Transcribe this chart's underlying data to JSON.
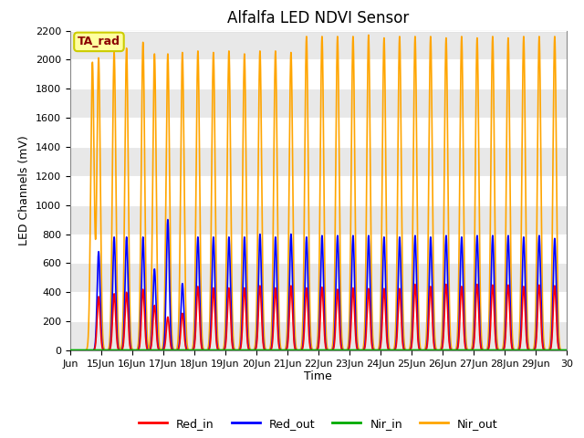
{
  "title": "Alfalfa LED NDVI Sensor",
  "ylabel": "LED Channels (mV)",
  "xlabel": "Time",
  "annotation": "TA_rad",
  "annotation_color": "#8B0000",
  "annotation_bg": "#FFFFA0",
  "annotation_border": "#CCCC00",
  "xlim_start": 14.0,
  "xlim_end": 30.0,
  "ylim_bottom": 0,
  "ylim_top": 2200,
  "yticks": [
    0,
    200,
    400,
    600,
    800,
    1000,
    1200,
    1400,
    1600,
    1800,
    2000,
    2200
  ],
  "xtick_positions": [
    14,
    15,
    16,
    17,
    18,
    19,
    20,
    21,
    22,
    23,
    24,
    25,
    26,
    27,
    28,
    29,
    30
  ],
  "xtick_labels": [
    "Jun",
    "15Jun",
    "16Jun",
    "17Jun",
    "18Jun",
    "19Jun",
    "20Jun",
    "21Jun",
    "22Jun",
    "23Jun",
    "24Jun",
    "25Jun",
    "26Jun",
    "27Jun",
    "28Jun",
    "29Jun",
    "30"
  ],
  "colors": {
    "Red_in": "#FF0000",
    "Red_out": "#0000FF",
    "Nir_in": "#00AA00",
    "Nir_out": "#FFA500"
  },
  "background_gray": "#E8E8E8",
  "background_white": "#FFFFFF",
  "legend_labels": [
    "Red_in",
    "Red_out",
    "Nir_in",
    "Nir_out"
  ],
  "legend_colors": [
    "#FF0000",
    "#0000FF",
    "#00AA00",
    "#FFA500"
  ],
  "nir_out_peak_times": [
    14.72,
    14.92,
    15.42,
    15.82,
    16.35,
    16.72,
    17.15,
    17.62,
    18.12,
    18.62,
    19.12,
    19.62,
    20.12,
    20.62,
    21.12,
    21.62,
    22.12,
    22.62,
    23.12,
    23.62,
    24.12,
    24.62,
    25.12,
    25.62,
    26.12,
    26.62,
    27.12,
    27.62,
    28.12,
    28.62,
    29.12,
    29.62
  ],
  "nir_out_heights": [
    1980,
    2010,
    2050,
    2080,
    2120,
    2040,
    2040,
    2050,
    2060,
    2050,
    2060,
    2040,
    2060,
    2060,
    2050,
    2160,
    2160,
    2160,
    2160,
    2170,
    2150,
    2160,
    2160,
    2160,
    2150,
    2160,
    2150,
    2160,
    2150,
    2160,
    2160,
    2160
  ],
  "red_out_peak_times": [
    14.92,
    15.42,
    15.82,
    16.35,
    16.72,
    17.15,
    17.62,
    18.12,
    18.62,
    19.12,
    19.62,
    20.12,
    20.62,
    21.12,
    21.62,
    22.12,
    22.62,
    23.12,
    23.62,
    24.12,
    24.62,
    25.12,
    25.62,
    26.12,
    26.62,
    27.12,
    27.62,
    28.12,
    28.62,
    29.12,
    29.62
  ],
  "red_out_heights": [
    680,
    780,
    780,
    780,
    560,
    900,
    460,
    780,
    780,
    780,
    780,
    800,
    780,
    800,
    780,
    790,
    790,
    790,
    790,
    780,
    780,
    790,
    780,
    790,
    780,
    790,
    790,
    790,
    780,
    790,
    770
  ],
  "red_in_peak_times": [
    14.92,
    15.42,
    15.82,
    16.35,
    16.72,
    17.15,
    17.62,
    18.12,
    18.62,
    19.12,
    19.62,
    20.12,
    20.62,
    21.12,
    21.62,
    22.12,
    22.62,
    23.12,
    23.62,
    24.12,
    24.62,
    25.12,
    25.62,
    26.12,
    26.62,
    27.12,
    27.62,
    28.12,
    28.62,
    29.12,
    29.62
  ],
  "red_in_heights": [
    370,
    390,
    400,
    420,
    310,
    230,
    255,
    440,
    430,
    430,
    430,
    445,
    430,
    445,
    430,
    435,
    420,
    430,
    425,
    425,
    425,
    455,
    440,
    455,
    440,
    455,
    450,
    450,
    440,
    450,
    445
  ],
  "sigma_nir_out": 0.055,
  "sigma_red": 0.048
}
